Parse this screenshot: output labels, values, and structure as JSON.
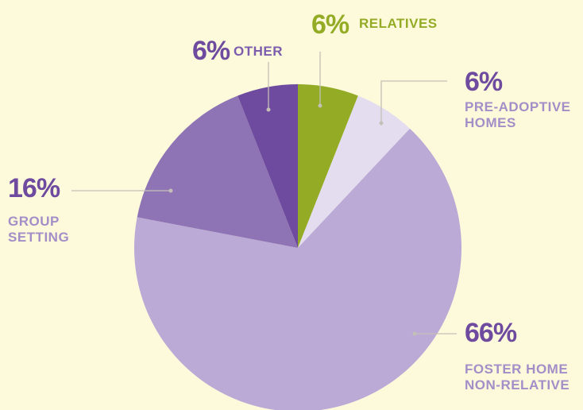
{
  "chart_data": {
    "type": "pie",
    "categories": [
      "RELATIVES",
      "PRE-ADOPTIVE\nHOMES",
      "FOSTER HOME\nNON-RELATIVE",
      "GROUP\nSETTING",
      "OTHER"
    ],
    "values": [
      6,
      6,
      66,
      16,
      6
    ],
    "value_labels": [
      "6%",
      "6%",
      "66%",
      "16%",
      "6%"
    ],
    "colors": [
      "#93ab25",
      "#e3ddef",
      "#bba9d6",
      "#8f74b5",
      "#6f4b9f"
    ],
    "label_colors": [
      "#93ab25",
      "#a38ec7",
      "#a38ec7",
      "#a38ec7",
      "#7c5cad"
    ],
    "number_colors": [
      "#93ab25",
      "#6f4b9f",
      "#6f4b9f",
      "#6f4b9f",
      "#6f4b9f"
    ]
  }
}
